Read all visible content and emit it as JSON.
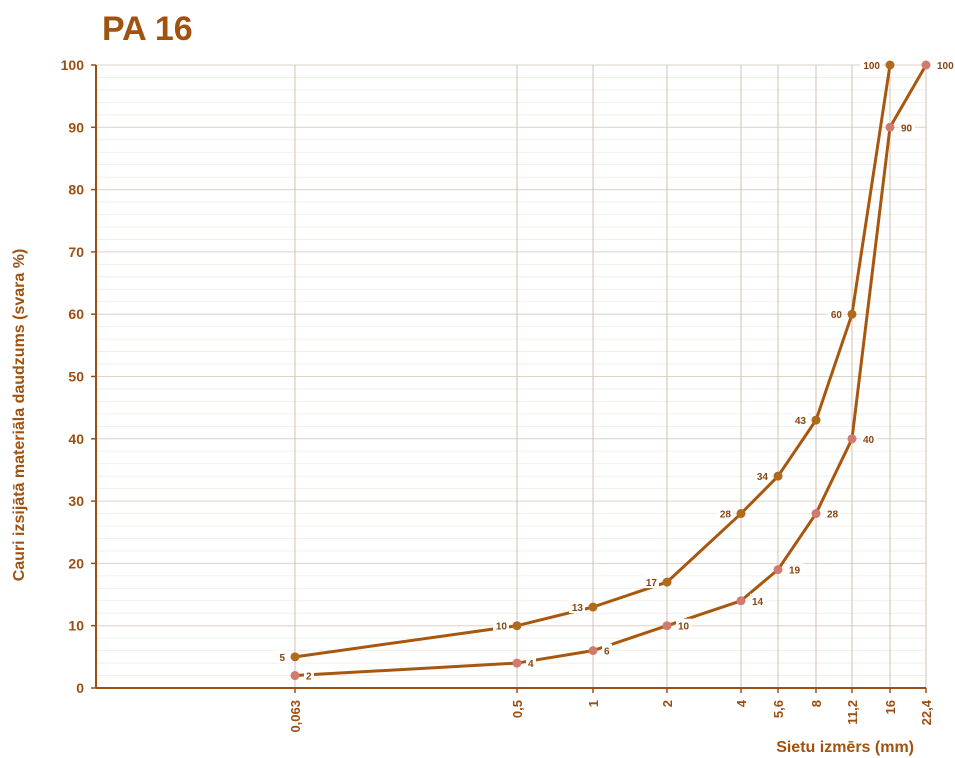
{
  "chart_data": {
    "type": "line",
    "title": "PA 16",
    "xlabel": "Sietu izmērs (mm)",
    "ylabel": "Cauri izsijātā materiāla daudzums (svara %)",
    "x_scale": "log",
    "x": [
      0.063,
      0.5,
      1,
      2,
      4,
      5.6,
      8,
      11.2,
      16,
      22.4
    ],
    "x_tick_labels": [
      "0,063",
      "0,5",
      "1",
      "2",
      "4",
      "5,6",
      "8",
      "11,2",
      "16",
      "22,4"
    ],
    "ylim": [
      0,
      100
    ],
    "y_ticks": [
      0,
      10,
      20,
      30,
      40,
      50,
      60,
      70,
      80,
      90,
      100
    ],
    "grid": true,
    "colors": {
      "line": "#a8570f",
      "upper_marker": "#b06a1c",
      "lower_marker": "#d07a70",
      "text": "#9c4f12"
    },
    "series": [
      {
        "x": [
          0.063,
          0.5,
          1,
          2,
          4,
          5.6,
          8,
          11.2,
          16
        ],
        "values": [
          5,
          10,
          13,
          17,
          28,
          34,
          43,
          60,
          100
        ],
        "labels": [
          "5",
          "10",
          "13",
          "17",
          "28",
          "34",
          "43",
          "60",
          "100"
        ]
      },
      {
        "x": [
          0.063,
          0.5,
          1,
          2,
          4,
          5.6,
          8,
          11.2,
          16,
          22.4
        ],
        "values": [
          2,
          4,
          6,
          10,
          14,
          19,
          28,
          40,
          90,
          100
        ],
        "labels": [
          "2",
          "4",
          "6",
          "10",
          "14",
          "19",
          "28",
          "40",
          "90",
          "100"
        ]
      }
    ]
  }
}
